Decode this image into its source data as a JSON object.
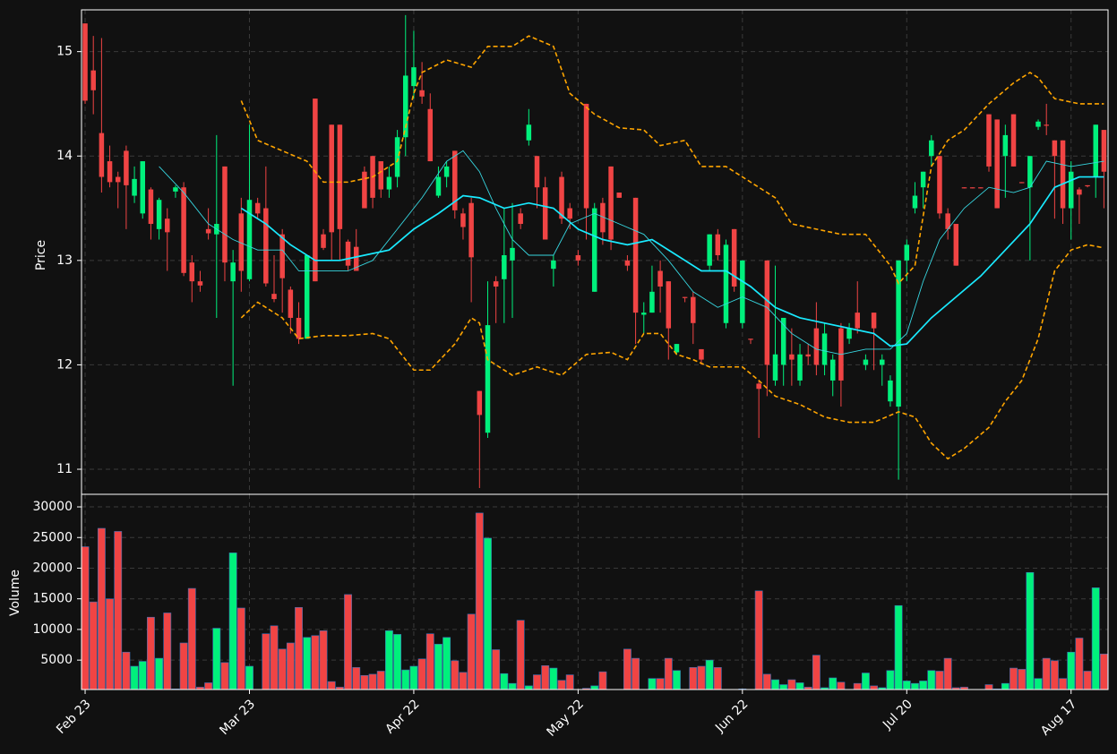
{
  "chart_data": {
    "type": "candlestick",
    "ylabel": "Price",
    "xlim": [
      -0.44,
      124.5
    ],
    "xticks": [
      {
        "value": 0,
        "label": "Feb 23"
      },
      {
        "value": 20,
        "label": "Mar 23"
      },
      {
        "value": 40,
        "label": "Apr 22"
      },
      {
        "value": 60,
        "label": "May 22"
      },
      {
        "value": 80,
        "label": "Jun 22"
      },
      {
        "value": 100,
        "label": "Jul 20"
      },
      {
        "value": 120,
        "label": "Aug 17"
      }
    ],
    "ylim": [
      10.76,
      15.4
    ],
    "yticks": [
      11,
      12,
      13,
      14,
      15
    ],
    "grid": true,
    "up_color": "#00f07c",
    "down_color": "#f04444",
    "open": [
      15.27,
      14.82,
      14.22,
      13.95,
      13.8,
      14.05,
      13.62,
      13.45,
      13.68,
      13.3,
      13.4,
      13.66,
      13.7,
      12.98,
      12.8,
      13.3,
      13.25,
      13.9,
      12.8,
      13.45,
      12.82,
      13.55,
      13.5,
      12.68,
      13.25,
      12.72,
      12.45,
      12.25,
      14.55,
      13.25,
      14.3,
      14.3,
      13.18,
      13.13,
      13.85,
      14.0,
      13.95,
      13.68,
      13.8,
      14.18,
      14.67,
      14.63,
      14.45,
      13.62,
      13.8,
      14.05,
      13.45,
      13.55,
      11.75,
      11.35,
      12.8,
      12.82,
      13.0,
      13.45,
      14.15,
      14.0,
      13.7,
      12.92,
      13.8,
      13.5,
      13.05,
      14.5,
      12.7,
      13.55,
      13.9,
      13.65,
      13.0,
      13.6,
      12.48,
      12.5,
      12.9,
      12.8,
      12.12,
      12.65,
      12.65,
      12.15,
      12.95,
      13.25,
      12.4,
      13.3,
      12.4,
      12.25,
      11.82,
      13.0,
      11.85,
      12.0,
      12.1,
      11.85,
      12.1,
      12.35,
      12.0,
      11.85,
      12.35,
      12.25,
      12.5,
      12.0,
      12.5,
      12.0,
      11.65,
      11.6,
      13.0,
      13.5,
      13.7,
      14.0,
      14.0,
      13.45,
      13.35,
      13.7,
      13.7,
      13.7,
      14.4,
      14.35,
      14.0,
      14.4,
      13.75,
      13.7,
      14.28,
      14.3,
      14.15,
      14.15,
      13.5,
      13.68,
      13.72,
      13.8,
      14.25
    ],
    "high": [
      15.27,
      15.15,
      15.13,
      14.1,
      13.85,
      14.1,
      13.9,
      13.95,
      13.7,
      13.6,
      13.5,
      13.72,
      13.75,
      13.05,
      12.9,
      13.5,
      14.2,
      13.9,
      13.1,
      13.6,
      14.3,
      13.6,
      13.9,
      13.05,
      13.3,
      12.75,
      12.6,
      13.05,
      14.55,
      13.3,
      14.3,
      14.3,
      13.2,
      13.3,
      13.9,
      14.0,
      13.95,
      13.9,
      14.25,
      15.35,
      15.2,
      14.9,
      14.6,
      13.9,
      13.95,
      14.05,
      13.5,
      13.6,
      11.75,
      12.8,
      12.85,
      13.5,
      13.55,
      13.5,
      14.45,
      14.0,
      13.8,
      13.05,
      13.85,
      13.55,
      13.1,
      14.5,
      13.55,
      13.6,
      13.9,
      13.65,
      13.05,
      13.6,
      12.6,
      12.95,
      13.0,
      12.8,
      12.2,
      12.65,
      12.7,
      12.15,
      13.25,
      13.3,
      13.2,
      13.3,
      13.0,
      12.25,
      11.85,
      13.0,
      12.95,
      12.45,
      12.35,
      12.2,
      12.2,
      12.6,
      12.4,
      12.1,
      12.4,
      12.4,
      12.8,
      12.1,
      12.5,
      12.1,
      11.9,
      13.0,
      13.2,
      13.75,
      13.85,
      14.2,
      14.0,
      13.5,
      13.35,
      13.7,
      13.7,
      13.7,
      14.4,
      14.35,
      14.3,
      14.4,
      13.75,
      14.0,
      14.35,
      14.5,
      14.15,
      14.15,
      13.95,
      13.7,
      13.72,
      14.3,
      14.25
    ],
    "low": [
      14.5,
      14.4,
      13.65,
      13.7,
      13.5,
      13.3,
      13.55,
      13.4,
      13.2,
      13.2,
      12.9,
      13.6,
      12.85,
      12.6,
      12.7,
      13.2,
      12.45,
      12.8,
      11.8,
      12.7,
      12.8,
      13.4,
      12.75,
      12.6,
      12.5,
      12.3,
      12.2,
      12.25,
      12.8,
      13.1,
      13.0,
      13.0,
      12.9,
      12.9,
      13.5,
      13.5,
      13.6,
      13.6,
      13.7,
      14.0,
      14.55,
      14.5,
      13.95,
      13.6,
      13.7,
      13.4,
      13.2,
      12.6,
      10.82,
      11.3,
      12.4,
      12.4,
      12.45,
      13.3,
      14.1,
      13.5,
      13.2,
      12.75,
      13.35,
      13.3,
      12.95,
      13.2,
      12.7,
      13.15,
      13.1,
      13.6,
      12.9,
      12.2,
      12.3,
      12.5,
      12.5,
      12.05,
      12.1,
      12.6,
      12.2,
      12.0,
      12.9,
      13.0,
      12.35,
      12.7,
      12.35,
      12.2,
      11.3,
      11.7,
      11.8,
      11.8,
      11.8,
      11.8,
      12.0,
      11.9,
      11.9,
      11.7,
      11.6,
      12.2,
      12.3,
      11.95,
      11.95,
      11.8,
      11.6,
      10.9,
      12.8,
      13.45,
      13.5,
      13.9,
      13.4,
      13.2,
      12.95,
      13.69,
      13.69,
      13.69,
      13.85,
      13.5,
      13.6,
      13.9,
      13.74,
      13.0,
      14.25,
      14.2,
      13.4,
      13.35,
      13.2,
      13.35,
      13.7,
      13.6,
      13.5
    ],
    "close": [
      14.53,
      14.63,
      13.8,
      13.75,
      13.75,
      13.72,
      13.78,
      13.95,
      13.35,
      13.58,
      13.27,
      13.7,
      12.88,
      12.8,
      12.76,
      13.26,
      13.35,
      12.98,
      12.98,
      12.9,
      13.58,
      13.45,
      12.78,
      12.63,
      12.83,
      12.45,
      12.25,
      13.05,
      12.8,
      13.12,
      13.27,
      13.3,
      12.95,
      12.9,
      13.5,
      13.6,
      13.68,
      13.8,
      14.18,
      14.77,
      14.85,
      14.57,
      13.95,
      13.8,
      13.9,
      13.48,
      13.32,
      13.03,
      11.52,
      12.38,
      12.75,
      13.05,
      13.12,
      13.35,
      14.3,
      13.7,
      13.2,
      13.0,
      13.4,
      13.4,
      13.0,
      13.5,
      13.5,
      13.27,
      13.2,
      13.6,
      12.95,
      12.5,
      12.5,
      12.7,
      12.75,
      12.35,
      12.2,
      12.64,
      12.4,
      12.05,
      13.25,
      13.05,
      13.15,
      12.75,
      13.0,
      12.24,
      11.77,
      12.0,
      12.1,
      12.45,
      12.05,
      12.1,
      12.08,
      12.0,
      12.3,
      12.05,
      11.85,
      12.35,
      12.35,
      12.05,
      12.35,
      12.05,
      11.85,
      13.0,
      13.15,
      13.62,
      13.85,
      14.15,
      13.45,
      13.3,
      12.95,
      13.69,
      13.69,
      13.69,
      13.9,
      13.5,
      14.2,
      13.9,
      13.74,
      14.0,
      14.33,
      14.29,
      14.0,
      13.5,
      13.85,
      13.63,
      13.71,
      14.3,
      13.85
    ],
    "overlays": [
      {
        "color": "#ffa500",
        "dash": true,
        "width": 1.6,
        "x": [
          19,
          21,
          24,
          27,
          29,
          32,
          35,
          38,
          40,
          41,
          44,
          47,
          49,
          52,
          54,
          57,
          59,
          62,
          65,
          68,
          70,
          73,
          75,
          78,
          81,
          84,
          86,
          89,
          92,
          95,
          98,
          99,
          101,
          103,
          105,
          107,
          110,
          113,
          115,
          116,
          118,
          121,
          124
        ],
        "values": [
          14.53,
          14.15,
          14.05,
          13.95,
          13.75,
          13.75,
          13.8,
          13.95,
          14.6,
          14.8,
          14.92,
          14.85,
          15.05,
          15.05,
          15.15,
          15.05,
          14.6,
          14.4,
          14.27,
          14.25,
          14.1,
          14.15,
          13.9,
          13.9,
          13.75,
          13.6,
          13.35,
          13.3,
          13.25,
          13.25,
          12.95,
          12.78,
          12.95,
          13.9,
          14.15,
          14.25,
          14.5,
          14.7,
          14.8,
          14.75,
          14.55,
          14.5,
          14.5
        ]
      },
      {
        "color": "#ffa500",
        "dash": true,
        "width": 1.6,
        "x": [
          19,
          21,
          24,
          26,
          29,
          32,
          35,
          37,
          40,
          42,
          45,
          47,
          48,
          49,
          52,
          55,
          58,
          61,
          64,
          66,
          68,
          70,
          72,
          74,
          76,
          80,
          82,
          84,
          87,
          90,
          93,
          96,
          99,
          101,
          103,
          105,
          107,
          110,
          112,
          114,
          116,
          118,
          120,
          122,
          124
        ],
        "values": [
          12.45,
          12.6,
          12.45,
          12.25,
          12.28,
          12.28,
          12.3,
          12.25,
          11.95,
          11.95,
          12.2,
          12.45,
          12.4,
          12.05,
          11.9,
          11.98,
          11.9,
          12.1,
          12.12,
          12.05,
          12.3,
          12.3,
          12.1,
          12.05,
          11.98,
          11.98,
          11.85,
          11.7,
          11.62,
          11.5,
          11.45,
          11.45,
          11.55,
          11.5,
          11.25,
          11.1,
          11.2,
          11.4,
          11.65,
          11.85,
          12.25,
          12.9,
          13.1,
          13.15,
          13.12
        ]
      },
      {
        "color": "#37d6e0",
        "dash": false,
        "width": 0.9,
        "x": [
          9,
          12,
          15,
          18,
          21,
          24,
          26,
          29,
          32,
          35,
          38,
          41,
          44,
          46,
          48,
          50,
          52,
          54,
          57,
          59,
          62,
          65,
          68,
          71,
          74,
          77,
          80,
          83,
          86,
          89,
          92,
          95,
          98,
          100,
          102,
          104,
          107,
          110,
          113,
          115,
          117,
          120,
          124
        ],
        "values": [
          13.9,
          13.65,
          13.35,
          13.2,
          13.1,
          13.1,
          12.9,
          12.9,
          12.9,
          13.0,
          13.3,
          13.6,
          13.95,
          14.05,
          13.85,
          13.5,
          13.2,
          13.05,
          13.05,
          13.35,
          13.45,
          13.35,
          13.25,
          13.0,
          12.7,
          12.55,
          12.65,
          12.55,
          12.3,
          12.15,
          12.1,
          12.15,
          12.15,
          12.3,
          12.8,
          13.2,
          13.5,
          13.7,
          13.65,
          13.7,
          13.95,
          13.9,
          13.95
        ]
      },
      {
        "color": "#19eaff",
        "dash": false,
        "width": 1.7,
        "x": [
          19,
          22,
          25,
          28,
          31,
          34,
          37,
          40,
          43,
          46,
          48,
          51,
          54,
          57,
          60,
          63,
          66,
          69,
          72,
          75,
          78,
          81,
          84,
          87,
          90,
          93,
          96,
          98,
          100,
          103,
          106,
          109,
          112,
          115,
          118,
          121,
          124
        ],
        "values": [
          13.5,
          13.35,
          13.15,
          13.0,
          13.0,
          13.05,
          13.1,
          13.3,
          13.45,
          13.62,
          13.6,
          13.5,
          13.55,
          13.5,
          13.3,
          13.2,
          13.15,
          13.2,
          13.05,
          12.9,
          12.9,
          12.75,
          12.55,
          12.45,
          12.4,
          12.35,
          12.3,
          12.18,
          12.2,
          12.45,
          12.65,
          12.85,
          13.1,
          13.35,
          13.7,
          13.8,
          13.8
        ]
      }
    ],
    "volume": {
      "ylabel": "Volume",
      "ylim": [
        200,
        32050
      ],
      "yticks": [
        5000,
        10000,
        15000,
        20000,
        25000,
        30000
      ],
      "values": [
        23500,
        14500,
        26500,
        15000,
        26000,
        6300,
        4000,
        4800,
        12000,
        5300,
        12700,
        300,
        7800,
        16700,
        600,
        1300,
        10200,
        4600,
        22500,
        13500,
        4000,
        200,
        9300,
        10600,
        6800,
        7800,
        13600,
        8700,
        9000,
        9800,
        1500,
        600,
        15700,
        3800,
        2500,
        2700,
        3200,
        9800,
        9200,
        3400,
        4000,
        5200,
        9300,
        7600,
        8700,
        4900,
        3000,
        12500,
        29000,
        24900,
        6700,
        2800,
        1200,
        11500,
        800,
        2600,
        4100,
        3700,
        1700,
        2600,
        100,
        400,
        800,
        3100,
        200,
        100,
        6800,
        5300,
        100,
        2000,
        2000,
        5300,
        3300,
        100,
        3800,
        4000,
        5000,
        3800,
        100,
        100,
        300,
        100,
        16300,
        2700,
        1800,
        1000,
        1800,
        1300,
        600,
        5800,
        500,
        2100,
        1400,
        200,
        1200,
        2900,
        800,
        500,
        3300,
        13900,
        1600,
        1200,
        1600,
        3300,
        3200,
        5300,
        500,
        600,
        100,
        200,
        1000,
        300,
        1200,
        3700,
        3500,
        19300,
        2000,
        5300,
        4900,
        2000,
        6300,
        8600,
        3200,
        16800,
        6000
      ]
    }
  }
}
